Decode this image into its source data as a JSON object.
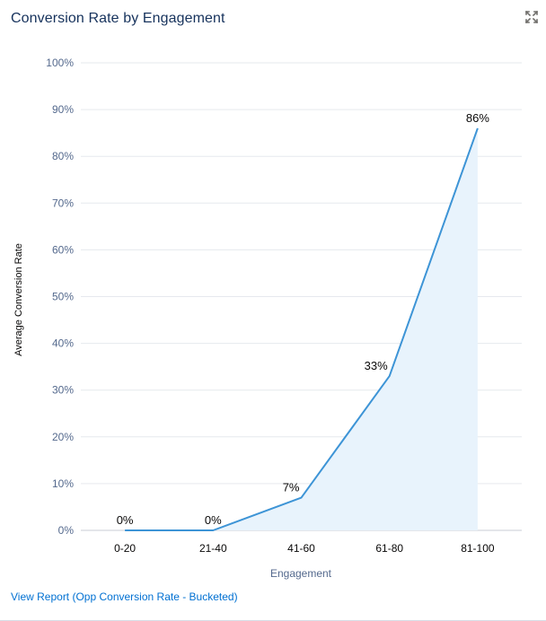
{
  "header": {
    "title": "Conversion Rate by Engagement"
  },
  "icons": {
    "expand": "expand-icon"
  },
  "footer": {
    "report_link": "View Report (Opp Conversion Rate - Bucketed)"
  },
  "colors": {
    "line": "#3d94d6",
    "area": "#e8f3fc",
    "grid": "#e6e9ee",
    "title": "#16325c",
    "link": "#0070d2",
    "axis_text": "#54698d"
  },
  "chart_data": {
    "type": "line",
    "title": "Conversion Rate by Engagement",
    "xlabel": "Engagement",
    "ylabel": "Average Conversion Rate",
    "categories": [
      "0-20",
      "21-40",
      "41-60",
      "61-80",
      "81-100"
    ],
    "values": [
      0,
      0,
      7,
      33,
      86
    ],
    "data_labels": [
      "0%",
      "0%",
      "7%",
      "33%",
      "86%"
    ],
    "ylim": [
      0,
      100
    ],
    "yticks": [
      0,
      10,
      20,
      30,
      40,
      50,
      60,
      70,
      80,
      90,
      100
    ],
    "ytick_labels": [
      "0%",
      "10%",
      "20%",
      "30%",
      "40%",
      "50%",
      "60%",
      "70%",
      "80%",
      "90%",
      "100%"
    ],
    "grid": true,
    "area_fill": true
  }
}
